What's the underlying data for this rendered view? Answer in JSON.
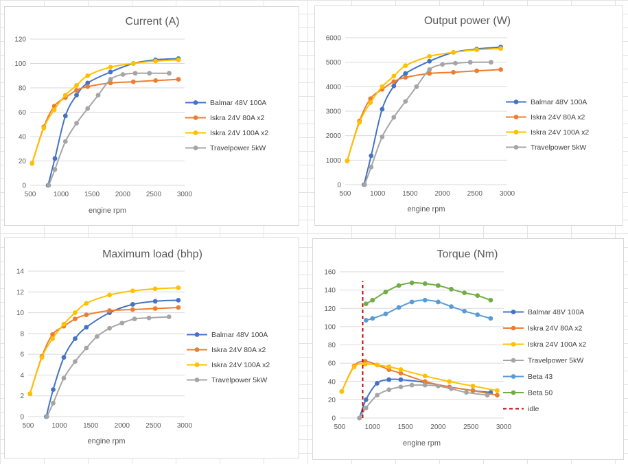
{
  "chart_data": [
    {
      "type": "line",
      "title": "Current (A)",
      "xlabel": "engine rpm",
      "ylabel": "",
      "xlim": [
        500,
        3000
      ],
      "ylim": [
        0,
        120
      ],
      "xticks": [
        "500",
        "1000",
        "1500",
        "2000",
        "2500",
        "3000"
      ],
      "yticks": [
        "0",
        "20",
        "40",
        "60",
        "80",
        "100",
        "120"
      ],
      "grid": "horizontal",
      "legend": "right",
      "series": [
        {
          "name": "Balmar 48V 100A",
          "color": "#4472C4",
          "x": [
            790,
            900,
            1070,
            1250,
            1430,
            1800,
            2170,
            2530,
            2900
          ],
          "y": [
            0,
            22,
            57,
            74,
            84,
            93,
            100,
            103,
            104
          ]
        },
        {
          "name": "Iskra 24V 80A x2",
          "color": "#ED7D31",
          "x": [
            530,
            720,
            890,
            1070,
            1250,
            1430,
            1800,
            2170,
            2530,
            2900
          ],
          "y": [
            18,
            48,
            65,
            72,
            78,
            81,
            84,
            85,
            86,
            87
          ]
        },
        {
          "name": "Iskra 24V 100A x2",
          "color": "#FFC000",
          "x": [
            530,
            720,
            890,
            1070,
            1250,
            1430,
            1800,
            2170,
            2530,
            2900
          ],
          "y": [
            18,
            47,
            62,
            74,
            82,
            90,
            97,
            100,
            102,
            103
          ]
        },
        {
          "name": "Travelpower 5kW",
          "color": "#A5A5A5",
          "x": [
            800,
            900,
            1070,
            1250,
            1430,
            1600,
            1800,
            2000,
            2200,
            2430,
            2750
          ],
          "y": [
            0,
            13,
            36,
            51,
            63,
            74,
            87,
            91,
            92,
            92,
            92
          ]
        }
      ]
    },
    {
      "type": "line",
      "title": "Output power (W)",
      "xlabel": "engine rpm",
      "ylabel": "",
      "xlim": [
        500,
        3000
      ],
      "ylim": [
        0,
        6000
      ],
      "xticks": [
        "500",
        "1000",
        "1500",
        "2000",
        "2500",
        "3000"
      ],
      "yticks": [
        "0",
        "1000",
        "2000",
        "3000",
        "4000",
        "5000",
        "6000"
      ],
      "grid": "horizontal",
      "legend": "right",
      "series": [
        {
          "name": "Balmar 48V 100A",
          "color": "#4472C4",
          "x": [
            790,
            900,
            1070,
            1250,
            1430,
            1800,
            2170,
            2530,
            2900
          ],
          "y": [
            0,
            1180,
            3080,
            4030,
            4540,
            5040,
            5400,
            5540,
            5620
          ]
        },
        {
          "name": "Iskra 24V 80A x2",
          "color": "#ED7D31",
          "x": [
            530,
            720,
            890,
            1070,
            1250,
            1430,
            1800,
            2170,
            2530,
            2900
          ],
          "y": [
            970,
            2600,
            3510,
            3890,
            4210,
            4380,
            4540,
            4590,
            4650,
            4700
          ]
        },
        {
          "name": "Iskra 24V 100A x2",
          "color": "#FFC000",
          "x": [
            530,
            720,
            890,
            1070,
            1250,
            1430,
            1800,
            2170,
            2530,
            2900
          ],
          "y": [
            970,
            2540,
            3350,
            4000,
            4430,
            4860,
            5240,
            5400,
            5510,
            5560
          ]
        },
        {
          "name": "Travelpower 5kW",
          "color": "#A5A5A5",
          "x": [
            800,
            900,
            1070,
            1250,
            1430,
            1600,
            1800,
            2000,
            2200,
            2430,
            2750
          ],
          "y": [
            0,
            720,
            1950,
            2750,
            3400,
            4000,
            4700,
            4910,
            4960,
            5000,
            5000
          ]
        }
      ]
    },
    {
      "type": "line",
      "title": "Maximum load (bhp)",
      "xlabel": "engine rpm",
      "ylabel": "",
      "xlim": [
        500,
        3000
      ],
      "ylim": [
        0,
        14
      ],
      "xticks": [
        "500",
        "1000",
        "1500",
        "2000",
        "2500",
        "3000"
      ],
      "yticks": [
        "0",
        "2",
        "4",
        "6",
        "8",
        "10",
        "12",
        "14"
      ],
      "grid": "horizontal",
      "legend": "right",
      "series": [
        {
          "name": "Balmar 48V 100A",
          "color": "#4472C4",
          "x": [
            790,
            900,
            1070,
            1250,
            1430,
            1800,
            2170,
            2530,
            2900
          ],
          "y": [
            0,
            2.6,
            5.7,
            7.5,
            8.6,
            10.0,
            10.8,
            11.1,
            11.2
          ]
        },
        {
          "name": "Iskra 24V 80A x2",
          "color": "#ED7D31",
          "x": [
            530,
            720,
            890,
            1070,
            1250,
            1430,
            1800,
            2170,
            2530,
            2900
          ],
          "y": [
            2.2,
            5.8,
            7.9,
            8.7,
            9.4,
            9.8,
            10.2,
            10.3,
            10.4,
            10.5
          ]
        },
        {
          "name": "Iskra 24V 100A x2",
          "color": "#FFC000",
          "x": [
            530,
            720,
            890,
            1070,
            1250,
            1430,
            1800,
            2170,
            2530,
            2900
          ],
          "y": [
            2.2,
            5.7,
            7.5,
            8.9,
            10.0,
            10.9,
            11.7,
            12.1,
            12.3,
            12.4
          ]
        },
        {
          "name": "Travelpower 5kW",
          "color": "#A5A5A5",
          "x": [
            800,
            900,
            1070,
            1250,
            1430,
            1600,
            1800,
            2000,
            2200,
            2430,
            2750
          ],
          "y": [
            0,
            1.3,
            3.7,
            5.3,
            6.6,
            7.7,
            8.5,
            9.0,
            9.4,
            9.5,
            9.6
          ]
        }
      ]
    },
    {
      "type": "line",
      "title": "Torque (Nm)",
      "xlabel": "engine rpm",
      "ylabel": "",
      "xlim": [
        500,
        3000
      ],
      "ylim": [
        0,
        160
      ],
      "xticks": [
        "500",
        "1000",
        "1500",
        "2000",
        "2500",
        "3000"
      ],
      "yticks": [
        "0",
        "20",
        "40",
        "60",
        "80",
        "100",
        "120",
        "140",
        "160"
      ],
      "grid": "horizontal",
      "legend": "right",
      "series": [
        {
          "name": "Balmar 48V 100A",
          "color": "#4472C4",
          "x": [
            800,
            900,
            1070,
            1250,
            1430,
            1800,
            2170,
            2530,
            2800
          ],
          "y": [
            0,
            20,
            38,
            42,
            42,
            39,
            34,
            30,
            28
          ]
        },
        {
          "name": "Iskra 24V 80A x2",
          "color": "#ED7D31",
          "x": [
            530,
            720,
            890,
            1070,
            1250,
            1430,
            1800,
            2170,
            2530,
            2900
          ],
          "y": [
            29,
            57,
            62,
            58,
            53,
            49,
            40,
            34,
            30,
            25
          ]
        },
        {
          "name": "Iskra 24V 100A x2",
          "color": "#FFC000",
          "x": [
            530,
            720,
            890,
            1070,
            1250,
            1430,
            1800,
            2170,
            2530,
            2900
          ],
          "y": [
            29,
            56,
            59,
            58,
            56,
            53,
            46,
            40,
            35,
            30
          ]
        },
        {
          "name": "Travelpower 5kW",
          "color": "#A5A5A5",
          "x": [
            800,
            900,
            1070,
            1250,
            1430,
            1600,
            1800,
            2000,
            2200,
            2430,
            2750
          ],
          "y": [
            0,
            11,
            25,
            31,
            34,
            36,
            36,
            35,
            32,
            28,
            25
          ]
        },
        {
          "name": "Beta 43",
          "color": "#5B9BD5",
          "x": [
            900,
            1000,
            1200,
            1400,
            1600,
            1800,
            2000,
            2200,
            2400,
            2600,
            2800
          ],
          "y": [
            107,
            109,
            114,
            121,
            127,
            129,
            127,
            122,
            117,
            113,
            109
          ]
        },
        {
          "name": "Beta 50",
          "color": "#70AD47",
          "x": [
            900,
            1000,
            1200,
            1400,
            1600,
            1800,
            2000,
            2200,
            2400,
            2600,
            2800
          ],
          "y": [
            125,
            129,
            138,
            145,
            148,
            147,
            145,
            141,
            137,
            134,
            129
          ]
        },
        {
          "name": "idle",
          "color": "#C00000",
          "style": "dashed",
          "x": [
            850,
            850
          ],
          "y": [
            0,
            150
          ]
        }
      ]
    }
  ]
}
